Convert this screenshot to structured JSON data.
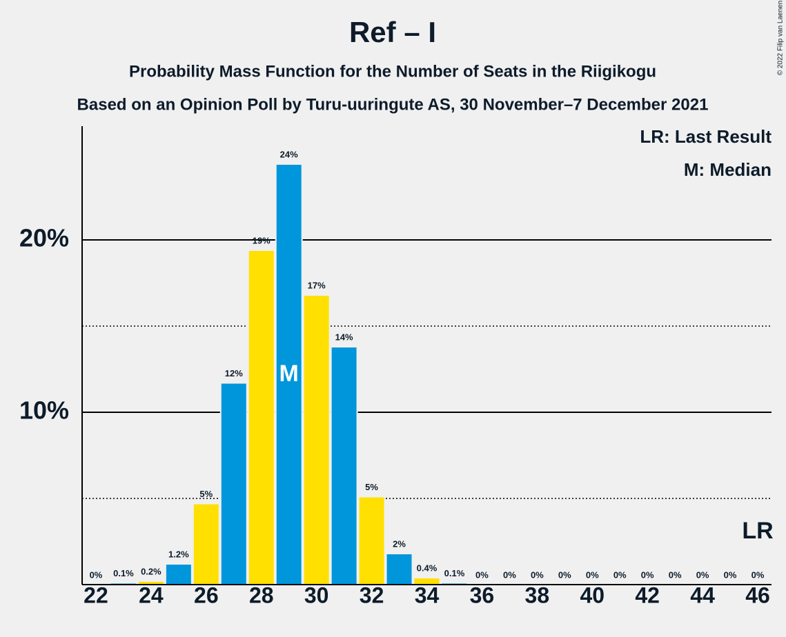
{
  "chart_data": {
    "type": "bar",
    "title": "Ref – I",
    "subtitle": "Probability Mass Function for the Number of Seats in the Riigikogu",
    "subtitle2": "Based on an Opinion Poll by Turu-uuringute AS, 30 November–7 December 2021",
    "copyright": "© 2022 Filip van Laenen",
    "legend": [
      "LR: Last Result",
      "M: Median"
    ],
    "x": [
      22,
      23,
      24,
      25,
      26,
      27,
      28,
      29,
      30,
      31,
      32,
      33,
      34,
      35,
      36,
      37,
      38,
      39,
      40,
      41,
      42,
      43,
      44,
      45,
      46
    ],
    "values": [
      0,
      0.1,
      0.2,
      1.2,
      4.7,
      11.7,
      19.4,
      24.4,
      16.8,
      13.8,
      5.1,
      1.8,
      0.4,
      0.1,
      0,
      0,
      0,
      0,
      0,
      0,
      0,
      0,
      0,
      0,
      0
    ],
    "value_labels": [
      "0%",
      "0.1%",
      "0.2%",
      "1.2%",
      "5%",
      "12%",
      "19%",
      "24%",
      "17%",
      "14%",
      "5%",
      "2%",
      "0.4%",
      "0.1%",
      "0%",
      "0%",
      "0%",
      "0%",
      "0%",
      "0%",
      "0%",
      "0%",
      "0%",
      "0%",
      "0%"
    ],
    "colors": [
      "#0096db",
      "#0096db",
      "#ffe000",
      "#0096db",
      "#ffe000",
      "#0096db",
      "#ffe000",
      "#0096db",
      "#ffe000",
      "#0096db",
      "#ffe000",
      "#0096db",
      "#ffe000",
      "#0096db",
      "#ffe000",
      "#0096db",
      "#ffe000",
      "#0096db",
      "#ffe000",
      "#0096db",
      "#ffe000",
      "#0096db",
      "#ffe000",
      "#0096db",
      "#ffe000"
    ],
    "median": {
      "x": 29,
      "label": "M"
    },
    "last_result": {
      "x": 46,
      "label": "LR"
    },
    "xlim": [
      21.5,
      46.5
    ],
    "xticks": [
      22,
      24,
      26,
      28,
      30,
      32,
      34,
      36,
      38,
      40,
      42,
      44,
      46
    ],
    "ylim": [
      0,
      26.6
    ],
    "yticks": [
      {
        "value": 10,
        "label": "10%"
      },
      {
        "value": 20,
        "label": "20%"
      }
    ],
    "minor_grid": [
      5,
      15
    ],
    "grid": true
  }
}
